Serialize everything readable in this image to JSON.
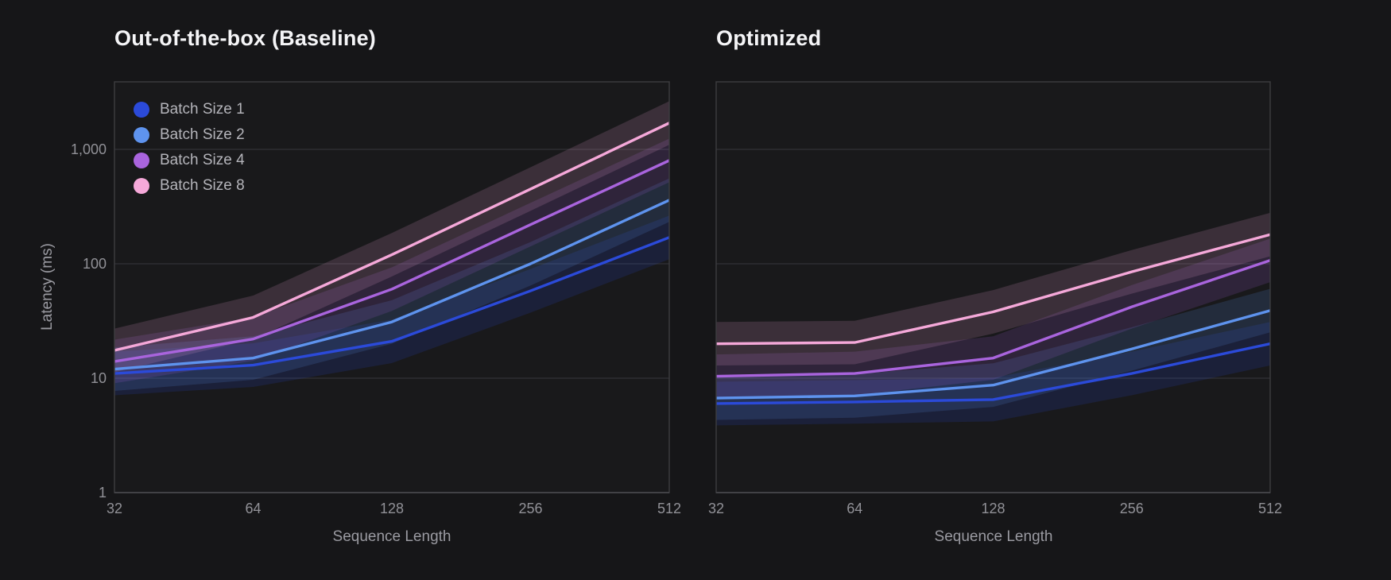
{
  "page": {
    "background": "#161618",
    "plot_background": "#19191b",
    "border_color": "#3d3d40",
    "gridline_color": "#333336",
    "axis_line_color": "#4a4a4e"
  },
  "titles": {
    "left": "Out-of-the-box (Baseline)",
    "right": "Optimized"
  },
  "axis_labels": {
    "y": "Latency (ms)",
    "x": "Sequence Length"
  },
  "legend": {
    "items": [
      {
        "label": "Batch Size 1",
        "color": "#2b4ad9"
      },
      {
        "label": "Batch Size 2",
        "color": "#5e93ee"
      },
      {
        "label": "Batch Size 4",
        "color": "#a964dd"
      },
      {
        "label": "Batch Size 8",
        "color": "#f5a8d9"
      }
    ]
  },
  "chart_data": [
    {
      "type": "line",
      "title": "Out-of-the-box (Baseline)",
      "xlabel": "Sequence Length",
      "ylabel": "Latency (ms)",
      "x_scale": "log2",
      "y_scale": "log10",
      "x": [
        32,
        64,
        128,
        256,
        512
      ],
      "x_tick_labels": [
        "32",
        "64",
        "128",
        "256",
        "512"
      ],
      "y_ticks": [
        1,
        10,
        100,
        1000
      ],
      "y_tick_labels": [
        "1",
        "10",
        "100",
        "1,000"
      ],
      "ylim": [
        1,
        3800
      ],
      "grid": true,
      "legend_position": "top-left-inside",
      "legend_visible": true,
      "band_factor": 1.55,
      "band_opacity": 0.16,
      "series": [
        {
          "name": "Batch Size 1",
          "color": "#2b4ad9",
          "values": [
            11,
            13,
            21,
            58,
            170
          ]
        },
        {
          "name": "Batch Size 2",
          "color": "#5e93ee",
          "values": [
            12,
            15,
            31,
            100,
            360
          ]
        },
        {
          "name": "Batch Size 4",
          "color": "#a964dd",
          "values": [
            14,
            22,
            60,
            220,
            800
          ]
        },
        {
          "name": "Batch Size 8",
          "color": "#f5a8d9",
          "values": [
            17.5,
            34,
            120,
            450,
            1700
          ]
        }
      ]
    },
    {
      "type": "line",
      "title": "Optimized",
      "xlabel": "Sequence Length",
      "ylabel": "Latency (ms)",
      "x_scale": "log2",
      "y_scale": "log10",
      "x": [
        32,
        64,
        128,
        256,
        512
      ],
      "x_tick_labels": [
        "32",
        "64",
        "128",
        "256",
        "512"
      ],
      "y_ticks": [
        1,
        10,
        100,
        1000
      ],
      "y_tick_labels": [
        "1",
        "10",
        "100",
        "1,000"
      ],
      "ylim": [
        1,
        3800
      ],
      "grid": true,
      "legend_visible": false,
      "band_factor": 1.55,
      "band_opacity": 0.16,
      "series": [
        {
          "name": "Batch Size 1",
          "color": "#2b4ad9",
          "values": [
            6,
            6.2,
            6.5,
            11,
            20
          ]
        },
        {
          "name": "Batch Size 2",
          "color": "#5e93ee",
          "values": [
            6.7,
            7,
            8.7,
            18,
            39
          ]
        },
        {
          "name": "Batch Size 4",
          "color": "#a964dd",
          "values": [
            10.4,
            11,
            15,
            42,
            107
          ]
        },
        {
          "name": "Batch Size 8",
          "color": "#f5a8d9",
          "values": [
            20,
            20.5,
            38,
            85,
            180
          ]
        }
      ]
    }
  ]
}
